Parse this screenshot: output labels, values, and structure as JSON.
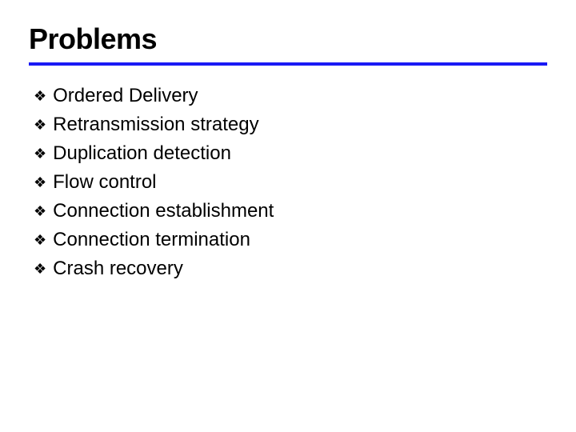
{
  "slide": {
    "title": "Problems",
    "title_fontsize": 36,
    "title_color": "#000000",
    "rule_color": "#1a1af5",
    "rule_thickness": 4,
    "background_color": "#ffffff",
    "bullet_glyph": "❖",
    "bullet_color": "#000000",
    "bullet_fontsize": 18,
    "item_fontsize": 24,
    "item_color": "#000000",
    "item_line_height": 32,
    "items": [
      "Ordered Delivery",
      "Retransmission strategy",
      "Duplication detection",
      "Flow control",
      "Connection establishment",
      "Connection termination",
      "Crash recovery"
    ]
  }
}
